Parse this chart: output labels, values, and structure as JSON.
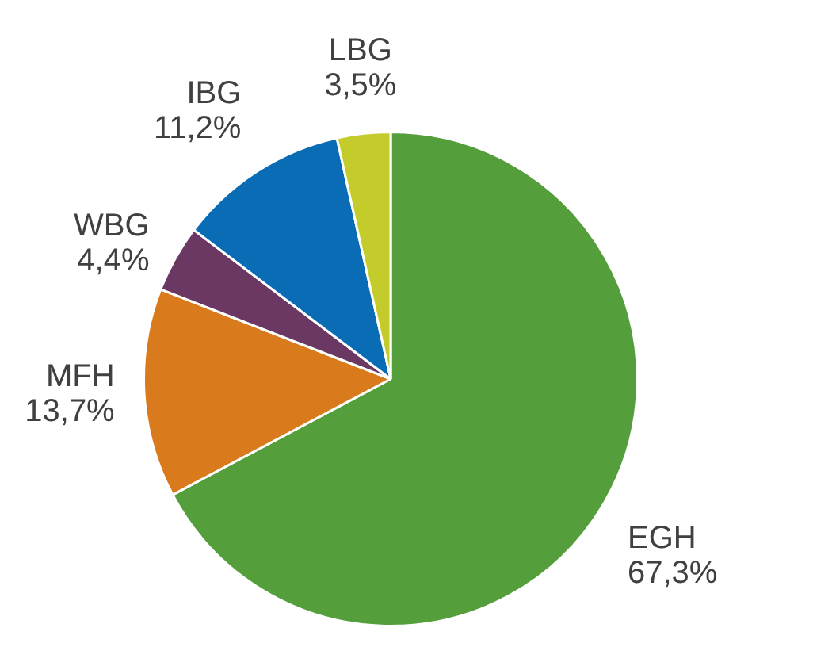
{
  "chart_data": {
    "type": "pie",
    "categories": [
      "EGH",
      "MFH",
      "WBG",
      "IBG",
      "LBG"
    ],
    "values": [
      67.3,
      13.7,
      4.4,
      11.2,
      3.5
    ],
    "value_labels": [
      "67,3%",
      "13,7%",
      "4,4%",
      "11,2%",
      "3,5%"
    ],
    "colors": [
      "#559e3c",
      "#d97b1c",
      "#6b3763",
      "#0a6cb5",
      "#c3cc2b"
    ],
    "legend": false
  }
}
